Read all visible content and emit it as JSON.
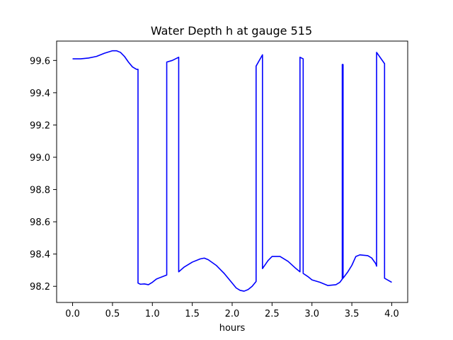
{
  "chart_data": {
    "type": "line",
    "title": "Water Depth h at gauge 515",
    "xlabel": "hours",
    "ylabel": "",
    "xlim": [
      -0.2,
      4.2
    ],
    "ylim": [
      98.1,
      99.72
    ],
    "xticks": [
      0.0,
      0.5,
      1.0,
      1.5,
      2.0,
      2.5,
      3.0,
      3.5,
      4.0
    ],
    "xtick_labels": [
      "0.0",
      "0.5",
      "1.0",
      "1.5",
      "2.0",
      "2.5",
      "3.0",
      "3.5",
      "4.0"
    ],
    "yticks": [
      98.2,
      98.4,
      98.6,
      98.8,
      99.0,
      99.2,
      99.4,
      99.6
    ],
    "ytick_labels": [
      "98.2",
      "98.4",
      "98.6",
      "98.8",
      "99.0",
      "99.2",
      "99.4",
      "99.6"
    ],
    "grid": false,
    "legend": "none",
    "series": [
      {
        "color": "#0000ff",
        "x": [
          0.0,
          0.1,
          0.2,
          0.3,
          0.4,
          0.5,
          0.55,
          0.6,
          0.65,
          0.7,
          0.75,
          0.8,
          0.82,
          0.82,
          0.85,
          0.9,
          0.95,
          1.0,
          1.05,
          1.1,
          1.18,
          1.18,
          1.25,
          1.33,
          1.33,
          1.4,
          1.5,
          1.6,
          1.65,
          1.7,
          1.8,
          1.9,
          2.0,
          2.05,
          2.1,
          2.15,
          2.2,
          2.25,
          2.3,
          2.3,
          2.38,
          2.38,
          2.45,
          2.5,
          2.6,
          2.7,
          2.8,
          2.85,
          2.85,
          2.89,
          2.89,
          2.95,
          3.0,
          3.1,
          3.2,
          3.3,
          3.35,
          3.38,
          3.38,
          3.39,
          3.39,
          3.45,
          3.5,
          3.55,
          3.6,
          3.7,
          3.75,
          3.8,
          3.81,
          3.81,
          3.91,
          3.91,
          4.0
        ],
        "y": [
          99.61,
          99.61,
          99.615,
          99.625,
          99.645,
          99.66,
          99.66,
          99.65,
          99.625,
          99.59,
          99.56,
          99.545,
          99.545,
          98.22,
          98.213,
          98.215,
          98.21,
          98.225,
          98.245,
          98.255,
          98.27,
          99.59,
          99.6,
          99.62,
          98.29,
          98.32,
          98.35,
          98.37,
          98.375,
          98.365,
          98.33,
          98.28,
          98.22,
          98.19,
          98.175,
          98.17,
          98.18,
          98.2,
          98.23,
          99.565,
          99.635,
          98.31,
          98.36,
          98.385,
          98.385,
          98.355,
          98.31,
          98.29,
          99.62,
          99.61,
          98.28,
          98.26,
          98.24,
          98.225,
          98.205,
          98.21,
          98.225,
          98.245,
          99.575,
          99.575,
          98.25,
          98.29,
          98.33,
          98.385,
          98.395,
          98.39,
          98.375,
          98.34,
          98.325,
          99.65,
          99.58,
          98.25,
          98.225
        ]
      }
    ]
  }
}
